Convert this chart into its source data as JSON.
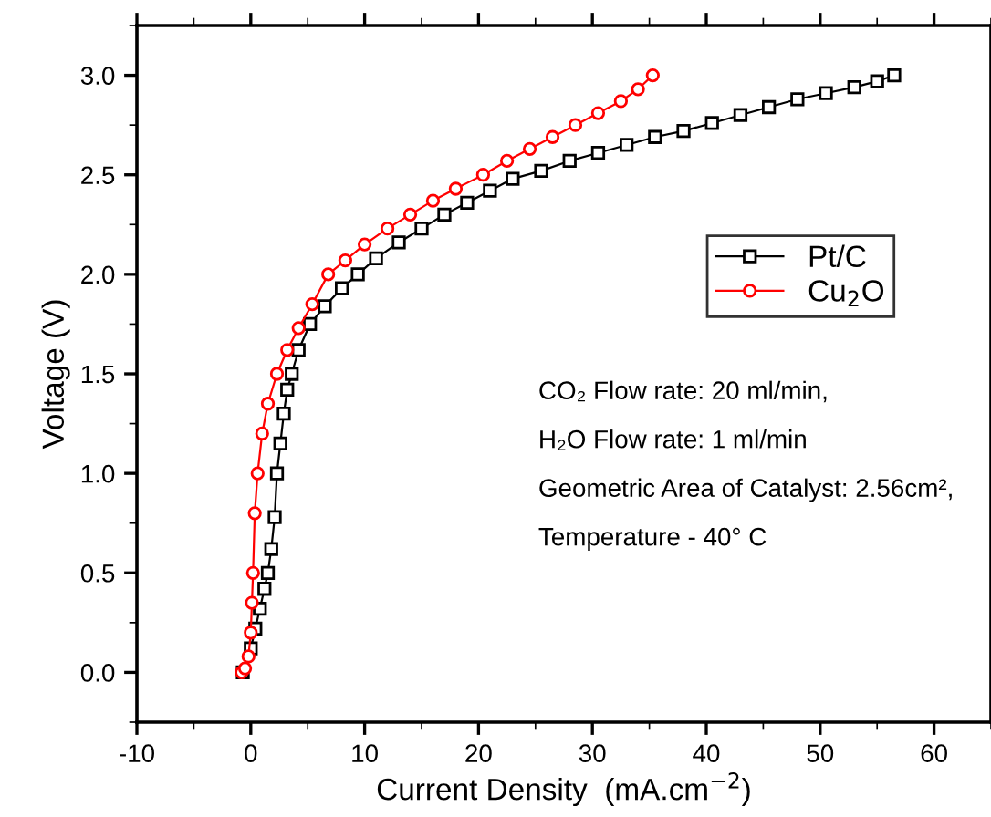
{
  "chart_data": {
    "type": "line",
    "xlabel": "Current Density  (mA.cm$^{−2}$)",
    "ylabel": "Voltage (V)",
    "xlim": [
      -10,
      65
    ],
    "ylim": [
      -0.25,
      3.25
    ],
    "xticks": [
      -10,
      0,
      10,
      20,
      30,
      40,
      50,
      60
    ],
    "yticks": [
      {
        "value": 0,
        "label": "0.0"
      },
      0.5,
      {
        "value": 1,
        "label": "1.0"
      },
      1.5,
      {
        "value": 2,
        "label": "2.0"
      },
      2.5,
      {
        "value": 3,
        "label": "3.0"
      }
    ],
    "grid": false,
    "legend": "right",
    "series": [
      {
        "name": "Pt/C",
        "color": "#000000",
        "marker": "square",
        "x": [
          -0.7,
          0,
          0.4,
          0.8,
          1.2,
          1.5,
          1.8,
          2.1,
          2.3,
          2.6,
          2.9,
          3.2,
          3.6,
          4.2,
          5.2,
          6.5,
          8,
          9.4,
          11,
          13,
          15,
          17,
          19,
          21,
          23,
          25.5,
          28,
          30.5,
          33,
          35.5,
          38,
          40.5,
          43,
          45.5,
          48,
          50.5,
          53,
          55,
          56.5
        ],
        "values": [
          0,
          0.12,
          0.22,
          0.32,
          0.42,
          0.5,
          0.62,
          0.78,
          1.0,
          1.15,
          1.3,
          1.42,
          1.5,
          1.62,
          1.75,
          1.84,
          1.93,
          2.0,
          2.08,
          2.16,
          2.23,
          2.3,
          2.36,
          2.42,
          2.48,
          2.52,
          2.57,
          2.61,
          2.65,
          2.69,
          2.72,
          2.76,
          2.8,
          2.84,
          2.88,
          2.91,
          2.94,
          2.97,
          3.0
        ]
      },
      {
        "name": "Cu$_{2}$O",
        "color": "#ff0000",
        "marker": "circle",
        "x": [
          -0.8,
          -0.5,
          -0.2,
          0,
          0.1,
          0.2,
          0.35,
          0.6,
          1.0,
          1.5,
          2.3,
          3.2,
          4.2,
          5.4,
          6.8,
          8.3,
          10,
          12,
          14,
          16,
          18,
          20.4,
          22.5,
          24.5,
          26.5,
          28.5,
          30.5,
          32.5,
          34,
          35.3
        ],
        "values": [
          0,
          0.02,
          0.08,
          0.2,
          0.35,
          0.5,
          0.8,
          1.0,
          1.2,
          1.35,
          1.5,
          1.62,
          1.73,
          1.85,
          2.0,
          2.07,
          2.15,
          2.23,
          2.3,
          2.37,
          2.43,
          2.5,
          2.57,
          2.63,
          2.69,
          2.75,
          2.81,
          2.87,
          2.93,
          3.0
        ]
      }
    ],
    "annotations": [
      "CO₂ Flow rate: 20 ml/min,",
      "H₂O Flow rate: 1 ml/min",
      "Geometric Area of Catalyst: 2.56cm²,",
      "Temperature - 40° C"
    ]
  }
}
